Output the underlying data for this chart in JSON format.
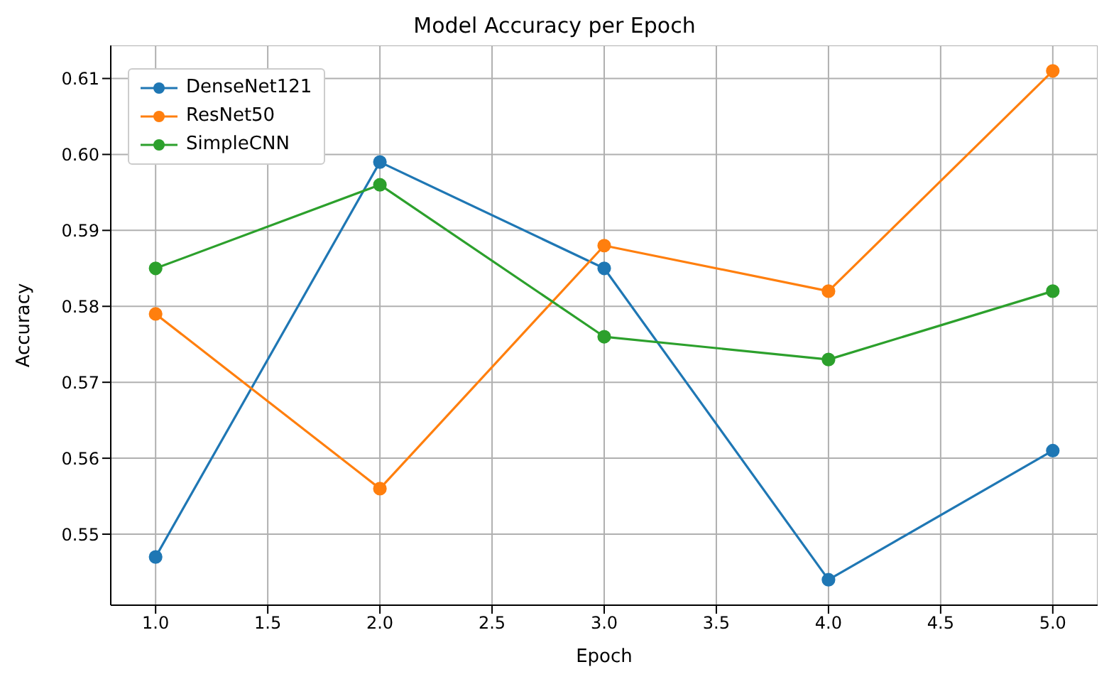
{
  "chart_data": {
    "type": "line",
    "title": "Model Accuracy per Epoch",
    "xlabel": "Epoch",
    "ylabel": "Accuracy",
    "x": [
      1,
      2,
      3,
      4,
      5
    ],
    "series": [
      {
        "name": "DenseNet121",
        "color": "#1f77b4",
        "values": [
          0.547,
          0.599,
          0.585,
          0.544,
          0.561
        ]
      },
      {
        "name": "ResNet50",
        "color": "#ff7f0e",
        "values": [
          0.579,
          0.556,
          0.588,
          0.582,
          0.611
        ]
      },
      {
        "name": "SimpleCNN",
        "color": "#2ca02c",
        "values": [
          0.585,
          0.596,
          0.576,
          0.573,
          0.582
        ]
      }
    ],
    "xlim": [
      0.8,
      5.2
    ],
    "xticks": [
      {
        "value": 1,
        "label": "1.0"
      },
      1.5,
      {
        "value": 2,
        "label": "2.0"
      },
      2.5,
      {
        "value": 3,
        "label": "3.0"
      },
      3.5,
      {
        "value": 4,
        "label": "4.0"
      },
      4.5,
      {
        "value": 5,
        "label": "5.0"
      }
    ],
    "ylim": [
      0.54065,
      0.61435
    ],
    "yticks": [
      0.55,
      0.56,
      0.57,
      0.58,
      0.59,
      {
        "value": 0.6,
        "label": "0.60"
      },
      0.61
    ],
    "grid": true,
    "legend": "top left",
    "marker": "circle",
    "line_style": "solid"
  }
}
